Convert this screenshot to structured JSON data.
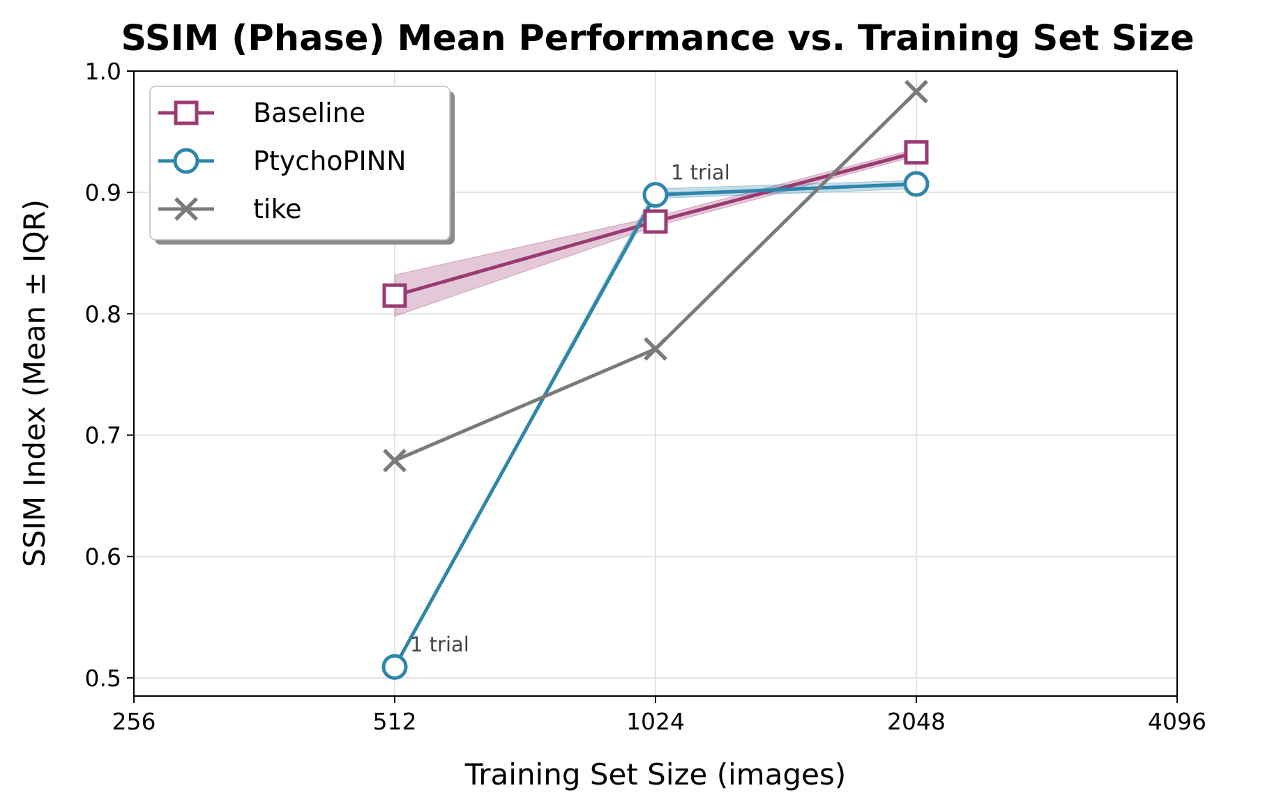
{
  "chart_data": {
    "type": "line",
    "title": "SSIM (Phase) Mean Performance vs. Training Set Size",
    "xlabel": "Training Set Size (images)",
    "ylabel": "SSIM Index (Mean ± IQR)",
    "x_scale": "log2",
    "xlim": [
      256,
      4096
    ],
    "ylim": [
      0.485,
      1.0
    ],
    "xticks": [
      256,
      512,
      1024,
      2048,
      4096
    ],
    "xtick_labels": [
      "256",
      "512",
      "1024",
      "2048",
      "4096"
    ],
    "yticks": [
      0.5,
      0.6,
      0.7,
      0.8,
      0.9,
      1.0
    ],
    "ytick_labels": [
      "0.5",
      "0.6",
      "0.7",
      "0.8",
      "0.9",
      "1.0"
    ],
    "grid": true,
    "legend_position": "top-left",
    "x": [
      512,
      1024,
      2048
    ],
    "series": [
      {
        "name": "Baseline",
        "marker": "square",
        "color": "#9b3a72",
        "values": [
          0.815,
          0.876,
          0.933
        ],
        "band_low": [
          0.798,
          0.872,
          0.93
        ],
        "band_high": [
          0.832,
          0.88,
          0.936
        ]
      },
      {
        "name": "PtychoPINN",
        "marker": "circle",
        "color": "#2e86ab",
        "values": [
          0.509,
          0.898,
          0.907
        ],
        "band_low": [
          0.509,
          0.895,
          0.903
        ],
        "band_high": [
          0.509,
          0.903,
          0.91
        ]
      },
      {
        "name": "tike",
        "marker": "x",
        "color": "#7a7a7a",
        "values": [
          0.679,
          0.771,
          0.983
        ]
      }
    ],
    "annotations": [
      {
        "text": "1 trial",
        "x": 512,
        "y": 0.509,
        "series": "PtychoPINN"
      },
      {
        "text": "1 trial",
        "x": 1024,
        "y": 0.898,
        "series": "PtychoPINN"
      }
    ]
  }
}
